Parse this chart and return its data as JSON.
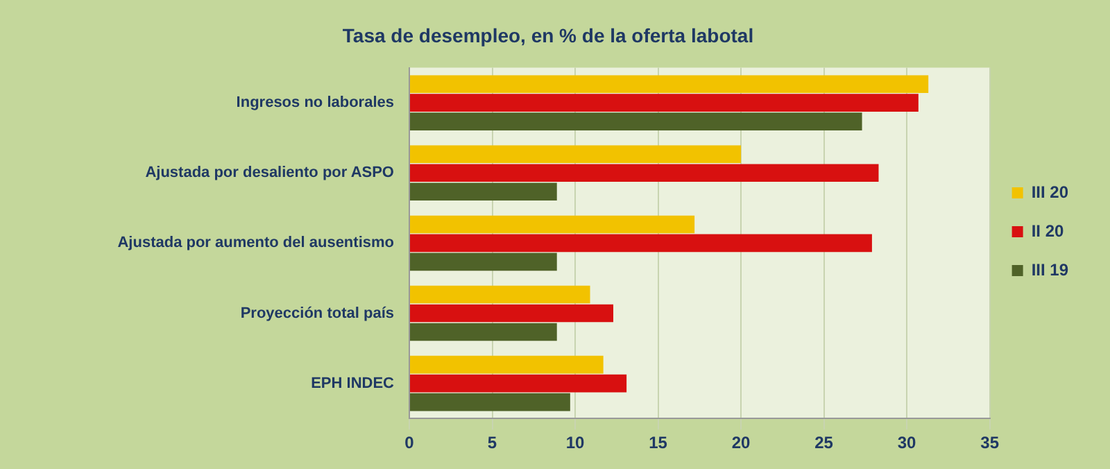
{
  "chart_data": {
    "type": "bar",
    "orientation": "horizontal",
    "title": "Tasa de desempleo, en % de la oferta labotal",
    "categories": [
      "Ingresos no laborales",
      "Ajustada por desaliento por ASPO",
      "Ajustada por aumento del ausentismo",
      "Proyección total país",
      "EPH INDEC"
    ],
    "series": [
      {
        "name": "III 20",
        "color": "#f2c200",
        "values": [
          31.3,
          20.0,
          17.2,
          10.9,
          11.7
        ]
      },
      {
        "name": "II 20",
        "color": "#d81010",
        "values": [
          30.7,
          28.3,
          27.9,
          12.3,
          13.1
        ]
      },
      {
        "name": "III 19",
        "color": "#4f6228",
        "values": [
          27.3,
          8.9,
          8.9,
          8.9,
          9.7
        ]
      }
    ],
    "xlim": [
      0,
      35
    ],
    "xticks": [
      0,
      5,
      10,
      15,
      20,
      25,
      30,
      35
    ],
    "grid": "x",
    "legend": "right"
  }
}
